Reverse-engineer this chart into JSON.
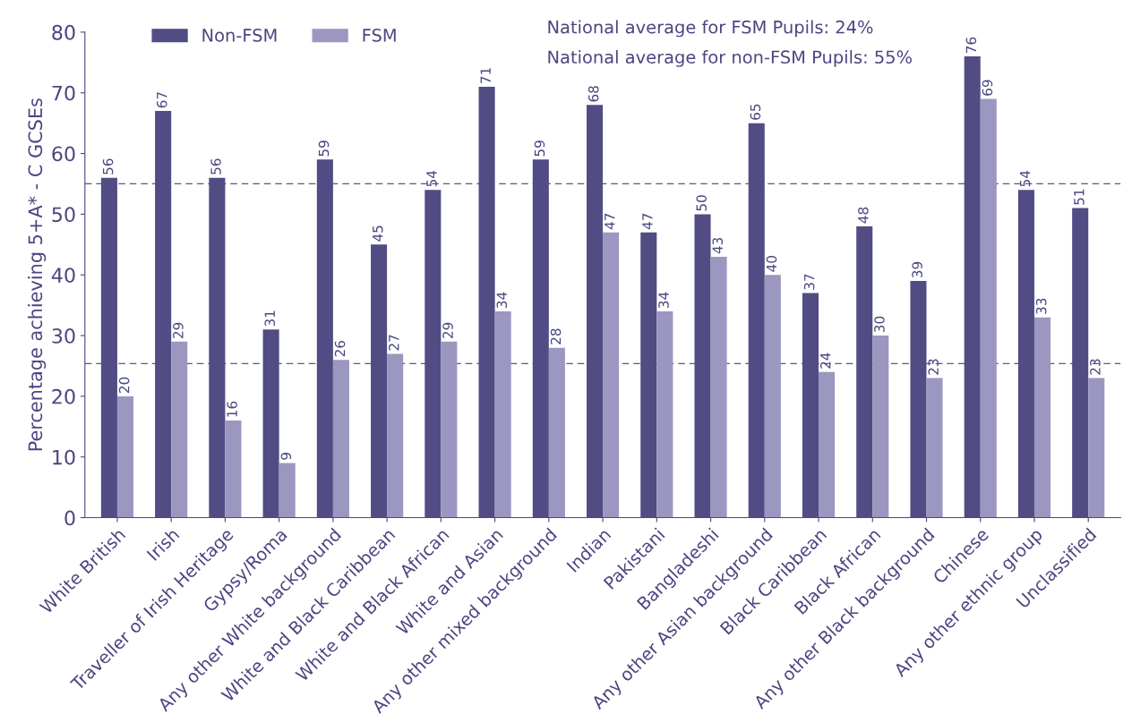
{
  "chart_data": {
    "type": "bar",
    "ylabel": "Percentage achieving 5+A* - C GCSEs",
    "categories": [
      "White British",
      "Irish",
      "Traveller of Irish Heritage",
      "Gypsy/Roma",
      "Any other White background",
      "White and Black Caribbean",
      "White and Black African",
      "White and Asian",
      "Any other mixed background",
      "Indian",
      "Pakistani",
      "Bangladeshi",
      "Any other Asian background",
      "Black Caribbean",
      "Black African",
      "Any other Black background",
      "Chinese",
      "Any other ethnic group",
      "Unclassified"
    ],
    "series": [
      {
        "name": "Non-FSM",
        "color": "#514c83",
        "values": [
          56,
          67,
          56,
          31,
          59,
          45,
          54,
          71,
          59,
          68,
          47,
          50,
          65,
          37,
          48,
          39,
          76,
          54,
          51
        ]
      },
      {
        "name": "FSM",
        "color": "#9b97c1",
        "values": [
          20,
          29,
          16,
          9,
          26,
          27,
          29,
          34,
          28,
          47,
          34,
          43,
          40,
          24,
          30,
          23,
          69,
          33,
          23
        ]
      }
    ],
    "ylim": [
      0,
      80
    ],
    "yticks": [
      0,
      10,
      20,
      30,
      40,
      50,
      60,
      70,
      80
    ],
    "ref_lines": [
      {
        "axis": "y",
        "value": 55,
        "line_style": "dashed"
      },
      {
        "axis": "y",
        "value": 25.4,
        "line_style": "dashed"
      }
    ],
    "annotations": [
      "National average for FSM Pupils: 24%",
      "National average for non-FSM Pupils: 55%"
    ],
    "data_labels": true,
    "legend": "top left",
    "grid": false
  }
}
